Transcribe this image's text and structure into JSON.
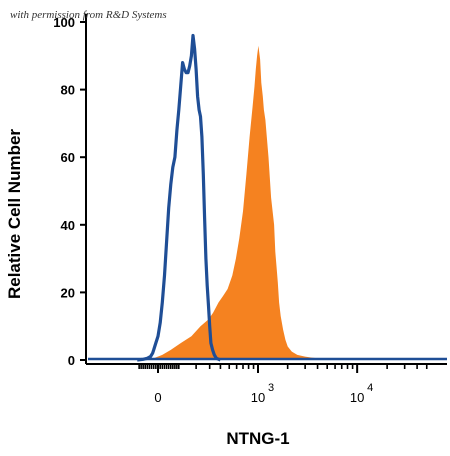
{
  "watermark": "with permission from R&D Systems",
  "chart_data": {
    "type": "area",
    "title": "",
    "xlabel": "NTNG-1",
    "ylabel": "Relative Cell Number",
    "x_scale": "biexponential",
    "xlim_label_range": [
      "-1x10^2",
      "5x10^4"
    ],
    "ylim": [
      0,
      100
    ],
    "yticks": [
      0,
      20,
      40,
      60,
      80,
      100
    ],
    "xticks": [
      {
        "value": 0,
        "label": "0"
      },
      {
        "value": 1000,
        "label": "10",
        "exponent": "3"
      },
      {
        "value": 10000,
        "label": "10",
        "exponent": "4"
      }
    ],
    "grid": false,
    "legend": "none",
    "series": [
      {
        "style": "filled",
        "color": "#f58220",
        "points": [
          [
            -80,
            0
          ],
          [
            -20,
            0.5
          ],
          [
            20,
            1.5
          ],
          [
            60,
            3
          ],
          [
            110,
            5
          ],
          [
            170,
            7
          ],
          [
            230,
            10
          ],
          [
            290,
            12
          ],
          [
            330,
            14
          ],
          [
            380,
            17
          ],
          [
            430,
            19
          ],
          [
            480,
            21
          ],
          [
            540,
            25
          ],
          [
            590,
            30
          ],
          [
            640,
            36
          ],
          [
            700,
            44
          ],
          [
            760,
            55
          ],
          [
            820,
            66
          ],
          [
            880,
            75
          ],
          [
            920,
            81
          ],
          [
            950,
            86
          ],
          [
            980,
            90
          ],
          [
            1010,
            93
          ],
          [
            1050,
            89
          ],
          [
            1080,
            82
          ],
          [
            1120,
            78
          ],
          [
            1150,
            74
          ],
          [
            1190,
            71
          ],
          [
            1230,
            66
          ],
          [
            1280,
            60
          ],
          [
            1320,
            54
          ],
          [
            1360,
            48
          ],
          [
            1410,
            44
          ],
          [
            1460,
            40
          ],
          [
            1500,
            32
          ],
          [
            1550,
            27
          ],
          [
            1590,
            23
          ],
          [
            1640,
            17
          ],
          [
            1700,
            13
          ],
          [
            1800,
            9
          ],
          [
            1900,
            6
          ],
          [
            2000,
            4
          ],
          [
            2200,
            2.5
          ],
          [
            2500,
            1.5
          ],
          [
            3000,
            1
          ],
          [
            3500,
            0.7
          ],
          [
            4000,
            0.5
          ],
          [
            5000,
            0.3
          ],
          [
            6000,
            0
          ]
        ]
      },
      {
        "style": "line",
        "color": "#1f4e96",
        "points": [
          [
            -100,
            0
          ],
          [
            -70,
            0.2
          ],
          [
            -50,
            0.5
          ],
          [
            -35,
            1
          ],
          [
            -25,
            2
          ],
          [
            -20,
            3
          ],
          [
            -10,
            5
          ],
          [
            0,
            7
          ],
          [
            10,
            11
          ],
          [
            20,
            17
          ],
          [
            30,
            25
          ],
          [
            40,
            35
          ],
          [
            50,
            45
          ],
          [
            60,
            52
          ],
          [
            70,
            57
          ],
          [
            80,
            60
          ],
          [
            90,
            68
          ],
          [
            100,
            74
          ],
          [
            110,
            81
          ],
          [
            120,
            88
          ],
          [
            130,
            86
          ],
          [
            140,
            85
          ],
          [
            150,
            85
          ],
          [
            160,
            87
          ],
          [
            170,
            90
          ],
          [
            180,
            96
          ],
          [
            190,
            92
          ],
          [
            200,
            86
          ],
          [
            210,
            78
          ],
          [
            220,
            74
          ],
          [
            230,
            72
          ],
          [
            240,
            66
          ],
          [
            250,
            55
          ],
          [
            260,
            42
          ],
          [
            270,
            30
          ],
          [
            280,
            22
          ],
          [
            290,
            16
          ],
          [
            300,
            10
          ],
          [
            310,
            5
          ],
          [
            325,
            3
          ],
          [
            340,
            1.5
          ],
          [
            360,
            0.5
          ],
          [
            400,
            0
          ]
        ]
      }
    ]
  }
}
